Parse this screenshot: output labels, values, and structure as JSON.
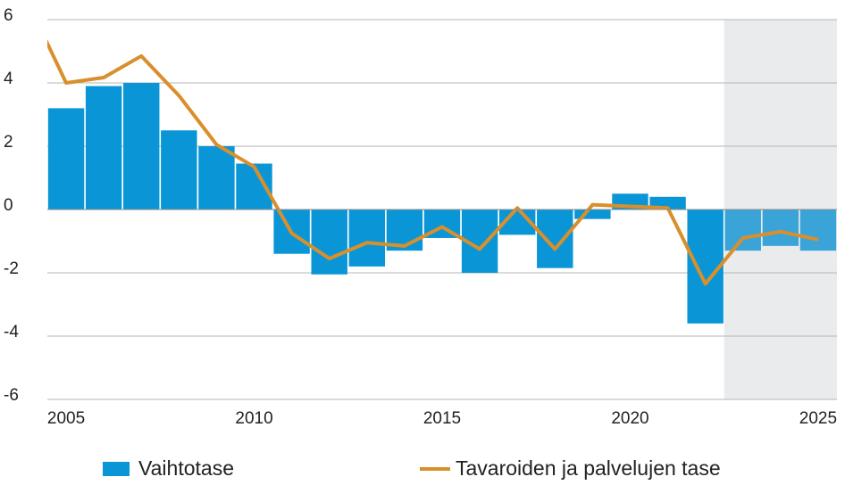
{
  "chart_data": {
    "type": "combo",
    "xlim": [
      2004.5,
      2025.5
    ],
    "xticks": [
      2005,
      2010,
      2015,
      2020,
      2025
    ],
    "ylim": [
      -6,
      6
    ],
    "yticks": [
      -6,
      -4,
      -2,
      0,
      2,
      4,
      6
    ],
    "grid": true,
    "shade_xlim": [
      2022.5,
      2025.5
    ],
    "shade_color": "#e9ebec",
    "legend": "bottom",
    "series": [
      {
        "name": "Vaihtotase",
        "type": "bar",
        "color": "#0a96d6",
        "x": [
          2005,
          2006,
          2007,
          2008,
          2009,
          2010,
          2011,
          2012,
          2013,
          2014,
          2015,
          2016,
          2017,
          2018,
          2019,
          2020,
          2021,
          2022,
          2023,
          2024,
          2025
        ],
        "values": [
          3.2,
          3.9,
          4.0,
          2.5,
          2.0,
          1.45,
          -1.4,
          -2.05,
          -1.8,
          -1.3,
          -0.9,
          -2.0,
          -0.8,
          -1.85,
          -0.3,
          0.5,
          0.4,
          -3.6,
          -1.3,
          -1.15,
          -1.3
        ],
        "colors": [
          "#0a96d6",
          "#0a96d6",
          "#0a96d6",
          "#0a96d6",
          "#0a96d6",
          "#0a96d6",
          "#0a96d6",
          "#0a96d6",
          "#0a96d6",
          "#0a96d6",
          "#0a96d6",
          "#0a96d6",
          "#0a96d6",
          "#0a96d6",
          "#0a96d6",
          "#0a96d6",
          "#0a96d6",
          "#0a96d6",
          "#3aa4d9",
          "#3aa4d9",
          "#3aa4d9"
        ]
      },
      {
        "name": "Tavaroiden ja palvelujen tase",
        "type": "line",
        "color": "#d98f2b",
        "x": [
          2004,
          2005,
          2006,
          2007,
          2008,
          2009,
          2010,
          2011,
          2012,
          2013,
          2014,
          2015,
          2016,
          2017,
          2018,
          2019,
          2020,
          2021,
          2022,
          2023,
          2024,
          2025
        ],
        "values": [
          6.5,
          4.0,
          4.17,
          4.85,
          3.6,
          2.05,
          1.35,
          -0.75,
          -1.55,
          -1.05,
          -1.15,
          -0.55,
          -1.25,
          0.05,
          -1.25,
          0.15,
          0.1,
          0.05,
          -2.35,
          -0.9,
          -0.7,
          -0.95
        ]
      }
    ]
  }
}
